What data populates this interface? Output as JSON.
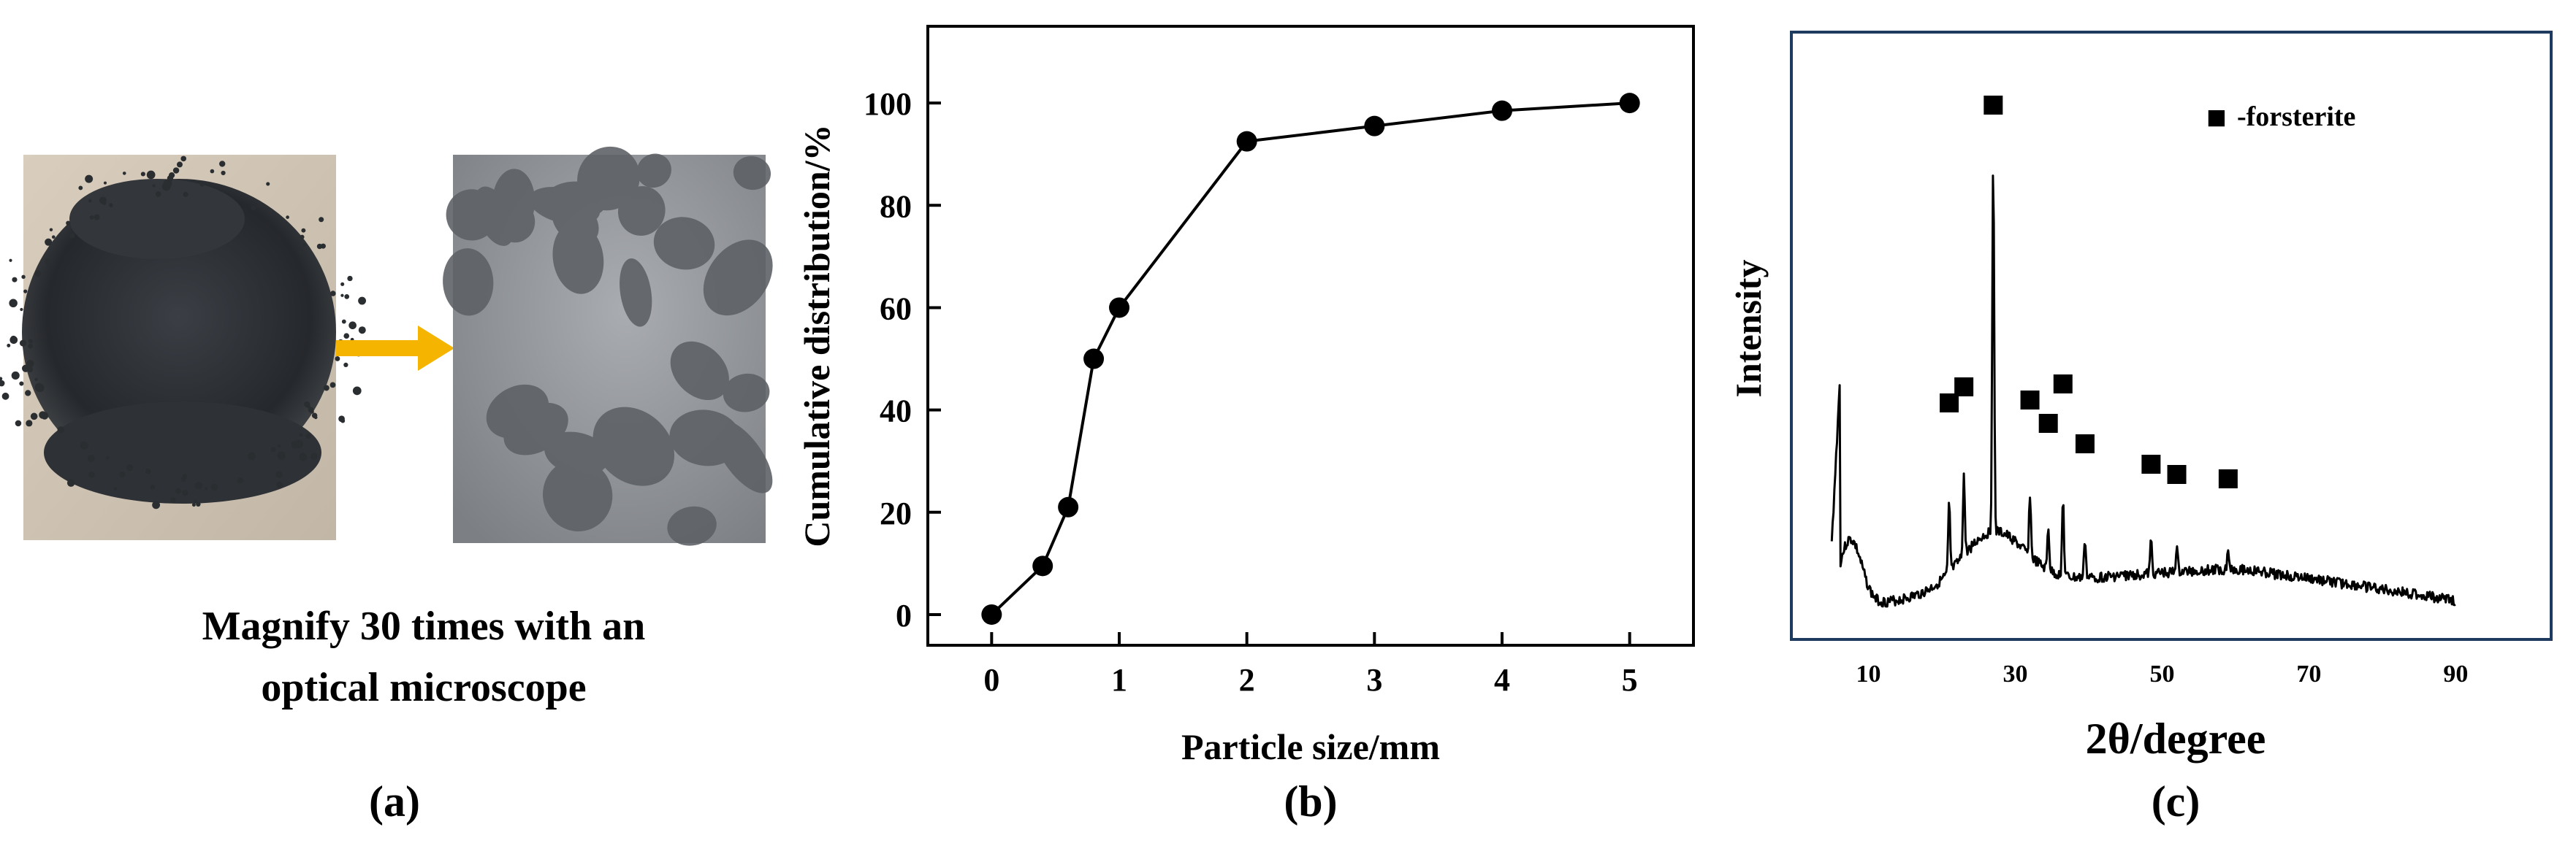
{
  "panel_a": {
    "caption_line1": "Magnify 30 times with an",
    "caption_line2": "optical microscope",
    "label": "(a)",
    "colors": {
      "arrow": "#f5b400",
      "powder": "#2a2d31",
      "background_photo": "#cfc3b3",
      "micrograph": "#8e9196"
    }
  },
  "panel_b": {
    "label": "(b)"
  },
  "panel_c": {
    "label": "(c)"
  },
  "chart_data": [
    {
      "type": "line",
      "title": "",
      "xlabel": "Particle size/mm",
      "ylabel": "Cumulative distribution/%",
      "xlim": [
        -0.5,
        5.5
      ],
      "ylim": [
        -6,
        115
      ],
      "xticks": [
        0,
        1,
        2,
        3,
        4,
        5
      ],
      "yticks": [
        0,
        20,
        40,
        60,
        80,
        100
      ],
      "grid": false,
      "series": [
        {
          "x": [
            0,
            0.4,
            0.6,
            0.8,
            1,
            2,
            3,
            4,
            5
          ],
          "y": [
            0,
            9.5,
            21,
            50,
            60,
            92.5,
            95.5,
            98.5,
            100
          ],
          "marker": "circle",
          "color": "#000000"
        }
      ]
    },
    {
      "type": "line",
      "title": "",
      "xlabel": "2θ/degree",
      "ylabel": "Intensity",
      "xlim": [
        -0.5,
        103
      ],
      "xticks": [
        10,
        30,
        50,
        70,
        90
      ],
      "frame_color": "#1f3a5f",
      "legend": {
        "marker": "■",
        "text": "-forsterite",
        "placement": "top-right"
      },
      "peak_markers_2theta": [
        21,
        23,
        27,
        32,
        34.5,
        36.5,
        39.5,
        48.5,
        52,
        59
      ],
      "pattern_shape": {
        "x_start": 5,
        "x_end": 90,
        "note_free": true
      }
    }
  ]
}
